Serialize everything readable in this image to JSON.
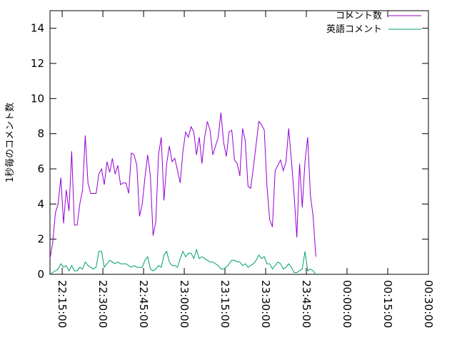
{
  "chart_data": {
    "type": "line",
    "title": "",
    "xlabel": "",
    "ylabel": "1秒毎のコメント数",
    "xlim": [
      "22:10:30",
      "00:30:00"
    ],
    "ylim": [
      0,
      15
    ],
    "x_ticks": [
      "22:15:00",
      "22:30:00",
      "22:45:00",
      "23:00:00",
      "23:15:00",
      "23:30:00",
      "23:45:00",
      "00:00:00",
      "00:15:00",
      "00:30:00"
    ],
    "y_ticks": [
      0,
      2,
      4,
      6,
      8,
      10,
      12,
      14
    ],
    "legend_position": "top-right",
    "grid": false,
    "x_start": "22:10:30",
    "x_step_seconds": 60,
    "series": [
      {
        "name": "コメント数",
        "color": "#9400d3",
        "values": [
          0.9,
          1.8,
          3.5,
          4.0,
          5.5,
          2.9,
          4.8,
          3.6,
          7.0,
          2.8,
          2.8,
          4.0,
          4.8,
          7.9,
          5.2,
          4.6,
          4.6,
          4.6,
          5.7,
          6.0,
          5.1,
          6.4,
          5.8,
          6.6,
          5.7,
          6.2,
          5.1,
          5.2,
          5.2,
          4.6,
          6.9,
          6.8,
          6.2,
          3.3,
          4.0,
          5.5,
          6.8,
          5.6,
          2.2,
          3.0,
          6.8,
          7.8,
          4.2,
          6.3,
          7.3,
          6.4,
          6.6,
          5.9,
          5.2,
          7.0,
          8.1,
          7.8,
          8.4,
          8.1,
          6.8,
          7.8,
          6.3,
          7.8,
          8.7,
          8.2,
          6.8,
          7.3,
          7.8,
          9.2,
          7.5,
          6.7,
          8.1,
          8.2,
          6.5,
          6.3,
          5.6,
          8.3,
          7.6,
          5.0,
          4.9,
          6.1,
          7.4,
          8.7,
          8.5,
          8.2,
          5.0,
          3.1,
          2.7,
          5.9,
          6.2,
          6.5,
          5.9,
          6.4,
          8.3,
          6.5,
          4.5,
          2.1,
          6.3,
          3.8,
          6.4,
          7.8,
          4.5,
          3.3,
          1.0
        ],
        "stroke_width": 1
      },
      {
        "name": "英語コメント",
        "color": "#009e73",
        "values": [
          0.0,
          0.1,
          0.2,
          0.3,
          0.6,
          0.4,
          0.5,
          0.2,
          0.5,
          0.2,
          0.2,
          0.4,
          0.3,
          0.7,
          0.5,
          0.4,
          0.3,
          0.4,
          1.3,
          1.3,
          0.4,
          0.6,
          0.8,
          0.7,
          0.6,
          0.7,
          0.6,
          0.6,
          0.6,
          0.5,
          0.4,
          0.5,
          0.4,
          0.4,
          0.4,
          0.8,
          1.0,
          0.3,
          0.2,
          0.3,
          0.5,
          0.4,
          1.1,
          1.3,
          0.7,
          0.5,
          0.5,
          0.4,
          0.9,
          1.3,
          1.0,
          1.2,
          1.2,
          0.9,
          1.4,
          0.9,
          1.0,
          0.9,
          0.8,
          0.7,
          0.7,
          0.6,
          0.5,
          0.3,
          0.3,
          0.4,
          0.6,
          0.8,
          0.8,
          0.7,
          0.7,
          0.5,
          0.6,
          0.4,
          0.5,
          0.6,
          0.8,
          1.1,
          0.9,
          1.0,
          0.6,
          0.6,
          0.3,
          0.5,
          0.7,
          0.6,
          0.3,
          0.4,
          0.6,
          0.4,
          0.1,
          0.1,
          0.2,
          0.3,
          1.3,
          0.2,
          0.3,
          0.2,
          0.0
        ],
        "stroke_width": 1
      }
    ]
  }
}
